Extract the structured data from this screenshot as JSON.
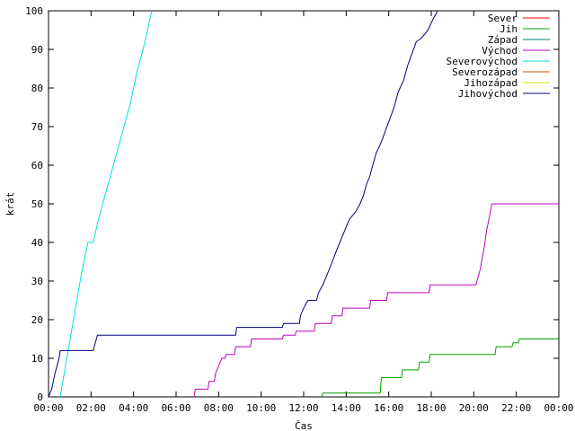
{
  "chart_data": {
    "type": "line",
    "xlabel": "Čas",
    "ylabel": "krát",
    "xlim": [
      0,
      24
    ],
    "ylim": [
      0,
      100
    ],
    "x_ticks": [
      "00:00",
      "02:00",
      "04:00",
      "06:00",
      "08:00",
      "10:00",
      "12:00",
      "14:00",
      "16:00",
      "18:00",
      "20:00",
      "22:00",
      "00:00"
    ],
    "y_ticks": [
      "0",
      "10",
      "20",
      "30",
      "40",
      "50",
      "60",
      "70",
      "80",
      "90",
      "100"
    ],
    "grid": false,
    "legend_position": "top-right",
    "series": [
      {
        "name": "Sever",
        "color": "#ff0000",
        "points": []
      },
      {
        "name": "Jih",
        "color": "#00a000",
        "points": [
          [
            12.85,
            0
          ],
          [
            12.9,
            1
          ],
          [
            15.6,
            1
          ],
          [
            15.65,
            5
          ],
          [
            16.6,
            5
          ],
          [
            16.65,
            7
          ],
          [
            17.4,
            7
          ],
          [
            17.45,
            9
          ],
          [
            17.9,
            9
          ],
          [
            17.95,
            11
          ],
          [
            21.0,
            11
          ],
          [
            21.05,
            13
          ],
          [
            21.8,
            13
          ],
          [
            21.85,
            14
          ],
          [
            22.1,
            14
          ],
          [
            22.15,
            15
          ],
          [
            24,
            15
          ]
        ]
      },
      {
        "name": "Západ",
        "color": "#008080",
        "points": []
      },
      {
        "name": "Východ",
        "color": "#c000c0",
        "points": [
          [
            6.85,
            0
          ],
          [
            6.9,
            2
          ],
          [
            7.5,
            2
          ],
          [
            7.55,
            4
          ],
          [
            7.8,
            4
          ],
          [
            7.85,
            6
          ],
          [
            8.0,
            8
          ],
          [
            8.15,
            10
          ],
          [
            8.3,
            10
          ],
          [
            8.35,
            11
          ],
          [
            8.75,
            11
          ],
          [
            8.8,
            13
          ],
          [
            9.5,
            13
          ],
          [
            9.55,
            15
          ],
          [
            11.0,
            15
          ],
          [
            11.05,
            16
          ],
          [
            11.6,
            16
          ],
          [
            11.65,
            17
          ],
          [
            12.5,
            17
          ],
          [
            12.55,
            19
          ],
          [
            13.3,
            19
          ],
          [
            13.35,
            21
          ],
          [
            13.8,
            21
          ],
          [
            13.85,
            23
          ],
          [
            15.1,
            23
          ],
          [
            15.15,
            25
          ],
          [
            15.9,
            25
          ],
          [
            15.95,
            27
          ],
          [
            17.9,
            27
          ],
          [
            17.95,
            29
          ],
          [
            20.1,
            29
          ],
          [
            20.2,
            31
          ],
          [
            20.3,
            33
          ],
          [
            20.4,
            36
          ],
          [
            20.5,
            39
          ],
          [
            20.6,
            43
          ],
          [
            20.75,
            47
          ],
          [
            20.85,
            50
          ],
          [
            24,
            50
          ]
        ]
      },
      {
        "name": "Severovýchod",
        "color": "#00e0e0",
        "points": [
          [
            0.55,
            0
          ],
          [
            0.8,
            8
          ],
          [
            1.05,
            16
          ],
          [
            1.3,
            24
          ],
          [
            1.55,
            32
          ],
          [
            1.85,
            40
          ],
          [
            2.1,
            40
          ],
          [
            2.35,
            46
          ],
          [
            2.65,
            52
          ],
          [
            2.95,
            58
          ],
          [
            3.25,
            64
          ],
          [
            3.55,
            70
          ],
          [
            3.85,
            76
          ],
          [
            4.15,
            84
          ],
          [
            4.45,
            90
          ],
          [
            4.7,
            96
          ],
          [
            4.85,
            100
          ]
        ]
      },
      {
        "name": "Severozápad",
        "color": "#c05000",
        "points": []
      },
      {
        "name": "Jihozápad",
        "color": "#e0e000",
        "points": []
      },
      {
        "name": "Jihovýchod",
        "color": "#000080",
        "points": [
          [
            0,
            0
          ],
          [
            0.15,
            2
          ],
          [
            0.3,
            6
          ],
          [
            0.5,
            10
          ],
          [
            0.55,
            12
          ],
          [
            2.1,
            12
          ],
          [
            2.2,
            14
          ],
          [
            2.3,
            16
          ],
          [
            8.8,
            16
          ],
          [
            8.85,
            18
          ],
          [
            11.0,
            18
          ],
          [
            11.05,
            19
          ],
          [
            11.8,
            19
          ],
          [
            11.85,
            21
          ],
          [
            12.0,
            23
          ],
          [
            12.1,
            24
          ],
          [
            12.2,
            25
          ],
          [
            12.6,
            25
          ],
          [
            12.7,
            27
          ],
          [
            12.9,
            29
          ],
          [
            13.05,
            31
          ],
          [
            13.2,
            33
          ],
          [
            13.35,
            35
          ],
          [
            13.55,
            38
          ],
          [
            13.7,
            40
          ],
          [
            13.85,
            42
          ],
          [
            14.0,
            44
          ],
          [
            14.15,
            46
          ],
          [
            14.45,
            48
          ],
          [
            14.65,
            50
          ],
          [
            14.8,
            52
          ],
          [
            14.95,
            55
          ],
          [
            15.1,
            57
          ],
          [
            15.25,
            60
          ],
          [
            15.4,
            63
          ],
          [
            15.65,
            66
          ],
          [
            15.85,
            69
          ],
          [
            16.05,
            72
          ],
          [
            16.25,
            75
          ],
          [
            16.45,
            79
          ],
          [
            16.7,
            82
          ],
          [
            16.9,
            86
          ],
          [
            17.1,
            89
          ],
          [
            17.3,
            92
          ],
          [
            17.55,
            93
          ],
          [
            17.85,
            95
          ],
          [
            18.1,
            98
          ],
          [
            18.3,
            100
          ]
        ]
      }
    ]
  }
}
